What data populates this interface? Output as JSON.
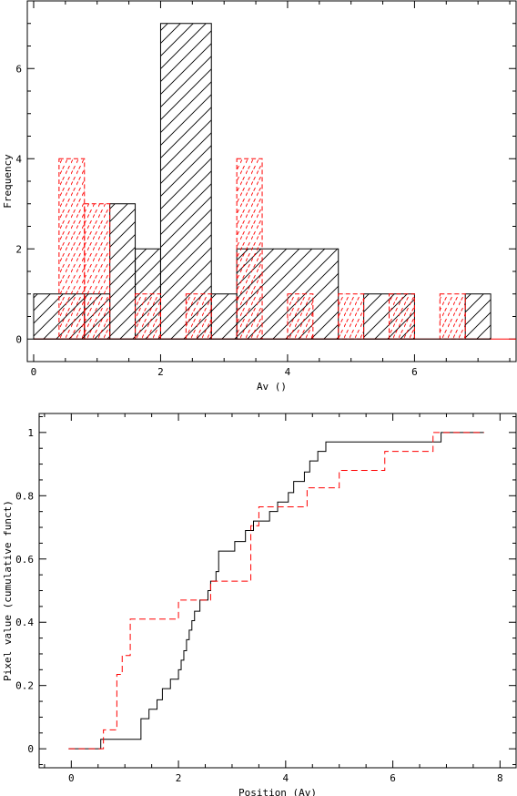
{
  "colors": {
    "series_black": "#000000",
    "series_red": "#ff0000",
    "background": "#ffffff"
  },
  "chart_data": [
    {
      "type": "bar",
      "subtype": "histogram",
      "title": "",
      "xlabel": "Av ()",
      "ylabel": "Frequency",
      "xlim": [
        -0.1,
        7.6
      ],
      "ylim": [
        -0.5,
        7.5
      ],
      "x_ticks": [
        0,
        2,
        4,
        6
      ],
      "y_ticks": [
        0,
        2,
        4,
        6
      ],
      "grid": false,
      "legend": "none",
      "series": [
        {
          "color": "black",
          "line_style": "solid",
          "hatch": "diagonal",
          "bins": [
            {
              "x0": 0.0,
              "x1": 0.8,
              "count": 1
            },
            {
              "x0": 0.8,
              "x1": 1.2,
              "count": 1
            },
            {
              "x0": 1.2,
              "x1": 1.6,
              "count": 3
            },
            {
              "x0": 1.6,
              "x1": 2.0,
              "count": 2
            },
            {
              "x0": 2.0,
              "x1": 2.8,
              "count": 7
            },
            {
              "x0": 2.8,
              "x1": 3.2,
              "count": 1
            },
            {
              "x0": 3.2,
              "x1": 4.8,
              "count": 2
            },
            {
              "x0": 4.8,
              "x1": 5.2,
              "count": 0
            },
            {
              "x0": 5.2,
              "x1": 6.0,
              "count": 1
            },
            {
              "x0": 6.0,
              "x1": 6.8,
              "count": 0
            },
            {
              "x0": 6.8,
              "x1": 7.2,
              "count": 1
            }
          ]
        },
        {
          "color": "red",
          "line_style": "dashed",
          "hatch": "dashed diagonal",
          "bins": [
            {
              "x0": 0.4,
              "x1": 0.8,
              "count": 4
            },
            {
              "x0": 0.8,
              "x1": 1.2,
              "count": 3
            },
            {
              "x0": 1.6,
              "x1": 2.0,
              "count": 1
            },
            {
              "x0": 2.4,
              "x1": 2.8,
              "count": 1
            },
            {
              "x0": 3.2,
              "x1": 3.6,
              "count": 4
            },
            {
              "x0": 4.0,
              "x1": 4.4,
              "count": 1
            },
            {
              "x0": 4.8,
              "x1": 5.2,
              "count": 1
            },
            {
              "x0": 5.6,
              "x1": 6.0,
              "count": 1
            },
            {
              "x0": 6.4,
              "x1": 6.8,
              "count": 1
            }
          ]
        }
      ]
    },
    {
      "type": "line",
      "subtype": "cumulative step function",
      "title": "",
      "xlabel": "Position (Av)",
      "ylabel": "Pixel value (cumulative funct)",
      "xlim": [
        -0.6,
        8.3
      ],
      "ylim": [
        -0.06,
        1.06
      ],
      "x_ticks": [
        0,
        2,
        4,
        6,
        8
      ],
      "y_ticks": [
        0,
        0.2,
        0.4,
        0.6,
        0.8,
        1
      ],
      "grid": false,
      "legend": "none",
      "series": [
        {
          "color": "black",
          "line_style": "solid",
          "x": [
            -0.05,
            0.55,
            1.3,
            1.45,
            1.6,
            1.7,
            1.85,
            2.0,
            2.05,
            2.1,
            2.15,
            2.2,
            2.25,
            2.3,
            2.4,
            2.55,
            2.6,
            2.7,
            2.75,
            3.05,
            3.25,
            3.4,
            3.7,
            3.85,
            4.05,
            4.15,
            4.35,
            4.45,
            4.6,
            4.75,
            4.95,
            5.35,
            5.85,
            6.9,
            7.7
          ],
          "y": [
            0,
            0.03,
            0.095,
            0.125,
            0.155,
            0.19,
            0.22,
            0.25,
            0.28,
            0.31,
            0.345,
            0.375,
            0.405,
            0.435,
            0.47,
            0.5,
            0.53,
            0.56,
            0.625,
            0.655,
            0.69,
            0.72,
            0.75,
            0.78,
            0.81,
            0.845,
            0.875,
            0.91,
            0.94,
            0.97,
            0.97,
            0.97,
            0.97,
            1.0,
            1.0
          ]
        },
        {
          "color": "red",
          "line_style": "dashed",
          "x": [
            -0.05,
            0.6,
            0.85,
            0.95,
            1.1,
            2.0,
            2.6,
            3.35,
            3.5,
            3.6,
            4.4,
            5.0,
            5.85,
            6.75,
            7.0,
            7.7
          ],
          "y": [
            0,
            0.06,
            0.235,
            0.295,
            0.41,
            0.47,
            0.53,
            0.705,
            0.765,
            0.765,
            0.825,
            0.88,
            0.94,
            1.0,
            1.0,
            1.0
          ]
        }
      ]
    }
  ]
}
